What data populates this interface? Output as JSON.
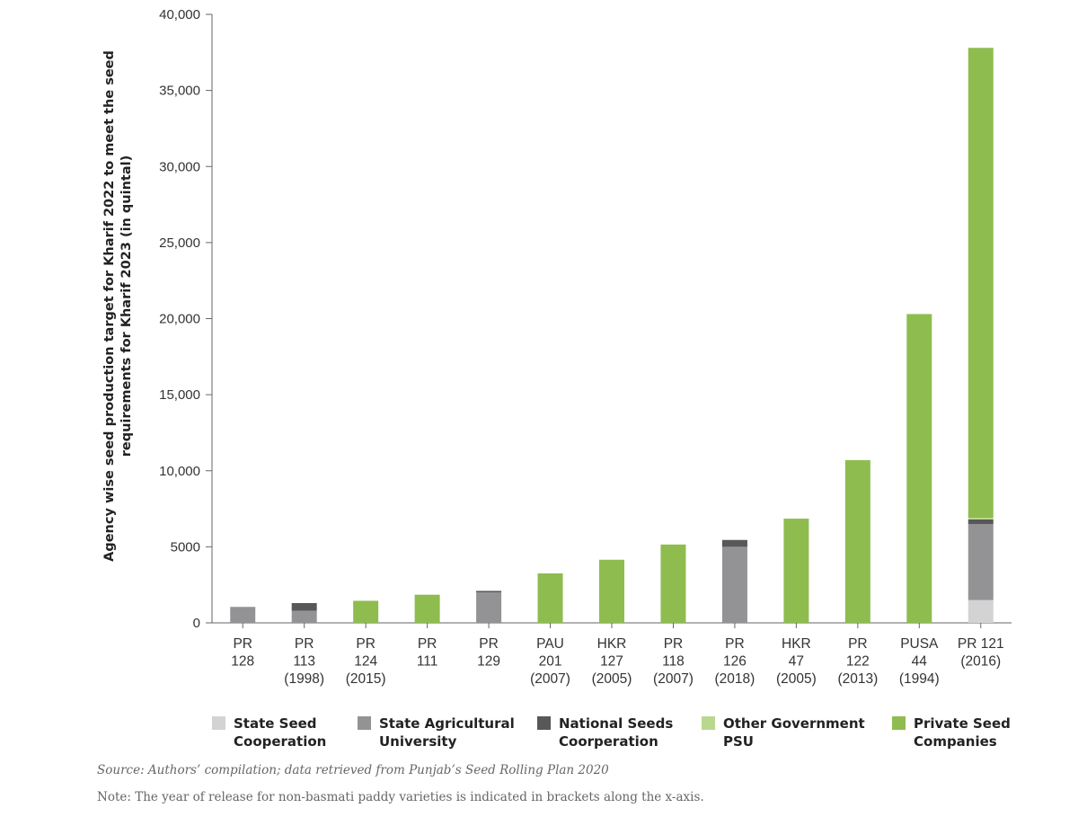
{
  "chart_data": {
    "type": "bar",
    "stacked": true,
    "title": "",
    "ylabel": "Agency wise seed production target for Kharif 2022 to meet the seed requirements for Kharif 2023 (in quintal)",
    "xlabel": "",
    "ylim": [
      0,
      40000
    ],
    "yticks": [
      0,
      5000,
      10000,
      15000,
      20000,
      25000,
      30000,
      35000,
      40000
    ],
    "ytick_labels": [
      "0",
      "5000",
      "10,000",
      "15,000",
      "20,000",
      "25,000",
      "30,000",
      "35,000",
      "40,000"
    ],
    "categories": [
      [
        "PR",
        "128"
      ],
      [
        "PR",
        "113",
        "(1998)"
      ],
      [
        "PR",
        "124",
        "(2015)"
      ],
      [
        "PR",
        "111"
      ],
      [
        "PR",
        "129"
      ],
      [
        "PAU",
        "201",
        "(2007)"
      ],
      [
        "HKR",
        "127",
        "(2005)"
      ],
      [
        "PR",
        "118",
        "(2007)"
      ],
      [
        "PR",
        "126",
        "(2018)"
      ],
      [
        "HKR",
        "47",
        "(2005)"
      ],
      [
        "PR",
        "122",
        "(2013)"
      ],
      [
        "PUSA",
        "44",
        "(1994)"
      ],
      [
        "PR 121",
        "(2016)"
      ]
    ],
    "series": [
      {
        "name": "State Seed\nCooperation",
        "color": "#d3d3d3",
        "values": [
          0,
          0,
          0,
          0,
          0,
          0,
          0,
          0,
          0,
          0,
          0,
          0,
          1500
        ]
      },
      {
        "name": "State Agricultural\nUniversity",
        "color": "#939395",
        "values": [
          1050,
          800,
          0,
          0,
          2000,
          0,
          0,
          0,
          5000,
          0,
          0,
          0,
          5000
        ]
      },
      {
        "name": "National Seeds\nCoorperation",
        "color": "#58585a",
        "values": [
          0,
          500,
          0,
          0,
          100,
          0,
          0,
          0,
          450,
          0,
          0,
          0,
          300
        ]
      },
      {
        "name": "Other Government\nPSU",
        "color": "#b9d88f",
        "values": [
          0,
          0,
          0,
          0,
          0,
          0,
          0,
          0,
          0,
          0,
          0,
          0,
          100
        ]
      },
      {
        "name": "Private Seed\nCompanies",
        "color": "#8fbc4f",
        "values": [
          0,
          0,
          1450,
          1850,
          0,
          3250,
          4150,
          5150,
          0,
          6850,
          10700,
          20300,
          30900
        ]
      }
    ],
    "grid": false,
    "legend_position": "bottom"
  },
  "footer": {
    "source": "Source: Authors’ compilation; data retrieved from Punjab’s Seed Rolling Plan 2020",
    "note": "Note: The year of release for non-basmati paddy varieties is indicated in brackets along the x-axis."
  }
}
